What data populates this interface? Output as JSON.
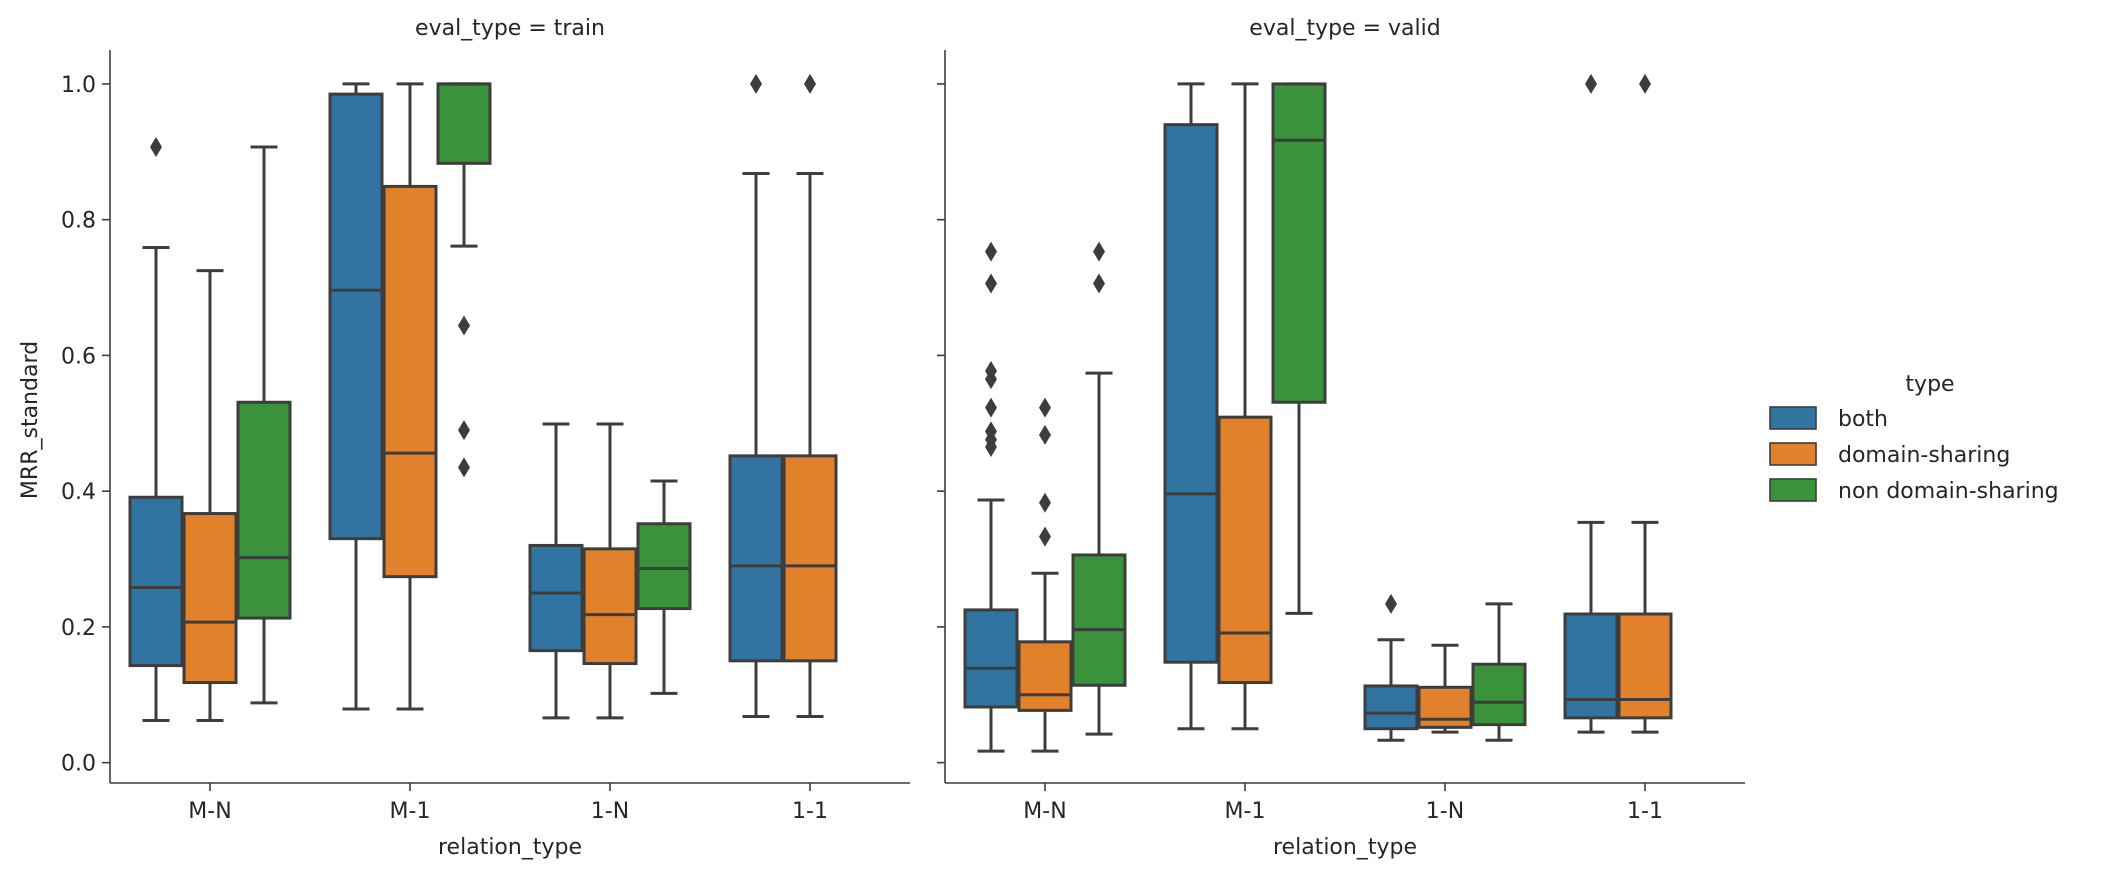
{
  "chart_data": {
    "type": "box",
    "y_label": "MRR_standard",
    "x_label": "relation_type",
    "ylim": [
      -0.03,
      1.05
    ],
    "y_ticks": [
      "0.0",
      "0.2",
      "0.4",
      "0.6",
      "0.8",
      "1.0"
    ],
    "categories": [
      "M-N",
      "M-1",
      "1-N",
      "1-1"
    ],
    "legend": {
      "title": "type",
      "position": "right",
      "entries": [
        {
          "name": "both",
          "color": "#3274a1"
        },
        {
          "name": "domain-sharing",
          "color": "#e1812c"
        },
        {
          "name": "non domain-sharing",
          "color": "#3a923a"
        }
      ]
    },
    "facets": [
      {
        "title": "eval_type = train",
        "groups": [
          {
            "category": "M-N",
            "boxes": [
              {
                "series": "both",
                "whislo": 0.062,
                "q1": 0.143,
                "med": 0.258,
                "q3": 0.391,
                "whishi": 0.759,
                "fliers": [
                  0.907
                ]
              },
              {
                "series": "domain-sharing",
                "whislo": 0.062,
                "q1": 0.118,
                "med": 0.207,
                "q3": 0.367,
                "whishi": 0.725,
                "fliers": []
              },
              {
                "series": "non domain-sharing",
                "whislo": 0.088,
                "q1": 0.213,
                "med": 0.302,
                "q3": 0.531,
                "whishi": 0.907,
                "fliers": []
              }
            ]
          },
          {
            "category": "M-1",
            "boxes": [
              {
                "series": "both",
                "whislo": 0.079,
                "q1": 0.33,
                "med": 0.696,
                "q3": 0.985,
                "whishi": 1.0,
                "fliers": []
              },
              {
                "series": "domain-sharing",
                "whislo": 0.079,
                "q1": 0.274,
                "med": 0.456,
                "q3": 0.849,
                "whishi": 1.0,
                "fliers": []
              },
              {
                "series": "non domain-sharing",
                "whislo": 0.761,
                "q1": 0.883,
                "med": 1.0,
                "q3": 1.0,
                "whishi": 1.0,
                "fliers": [
                  0.644,
                  0.49,
                  0.435
                ]
              }
            ]
          },
          {
            "category": "1-N",
            "boxes": [
              {
                "series": "both",
                "whislo": 0.066,
                "q1": 0.165,
                "med": 0.25,
                "q3": 0.32,
                "whishi": 0.499,
                "fliers": []
              },
              {
                "series": "domain-sharing",
                "whislo": 0.066,
                "q1": 0.146,
                "med": 0.218,
                "q3": 0.315,
                "whishi": 0.499,
                "fliers": []
              },
              {
                "series": "non domain-sharing",
                "whislo": 0.102,
                "q1": 0.227,
                "med": 0.286,
                "q3": 0.352,
                "whishi": 0.415,
                "fliers": []
              }
            ]
          },
          {
            "category": "1-1",
            "boxes": [
              {
                "series": "both",
                "whislo": 0.068,
                "q1": 0.15,
                "med": 0.29,
                "q3": 0.452,
                "whishi": 0.868,
                "fliers": [
                  1.0
                ]
              },
              {
                "series": "domain-sharing",
                "whislo": 0.068,
                "q1": 0.15,
                "med": 0.29,
                "q3": 0.452,
                "whishi": 0.868,
                "fliers": [
                  1.0
                ]
              }
            ]
          }
        ]
      },
      {
        "title": "eval_type = valid",
        "groups": [
          {
            "category": "M-N",
            "boxes": [
              {
                "series": "both",
                "whislo": 0.017,
                "q1": 0.082,
                "med": 0.139,
                "q3": 0.225,
                "whishi": 0.387,
                "fliers": [
                  0.753,
                  0.706,
                  0.577,
                  0.565,
                  0.523,
                  0.488,
                  0.476,
                  0.465
                ]
              },
              {
                "series": "domain-sharing",
                "whislo": 0.017,
                "q1": 0.077,
                "med": 0.1,
                "q3": 0.178,
                "whishi": 0.279,
                "fliers": [
                  0.523,
                  0.483,
                  0.383,
                  0.333
                ]
              },
              {
                "series": "non domain-sharing",
                "whislo": 0.042,
                "q1": 0.114,
                "med": 0.196,
                "q3": 0.306,
                "whishi": 0.574,
                "fliers": [
                  0.753,
                  0.706
                ]
              }
            ]
          },
          {
            "category": "M-1",
            "boxes": [
              {
                "series": "both",
                "whislo": 0.05,
                "q1": 0.148,
                "med": 0.396,
                "q3": 0.94,
                "whishi": 1.0,
                "fliers": []
              },
              {
                "series": "domain-sharing",
                "whislo": 0.05,
                "q1": 0.118,
                "med": 0.191,
                "q3": 0.509,
                "whishi": 1.0,
                "fliers": []
              },
              {
                "series": "non domain-sharing",
                "whislo": 0.22,
                "q1": 0.531,
                "med": 0.917,
                "q3": 1.0,
                "whishi": 1.0,
                "fliers": []
              }
            ]
          },
          {
            "category": "1-N",
            "boxes": [
              {
                "series": "both",
                "whislo": 0.033,
                "q1": 0.05,
                "med": 0.073,
                "q3": 0.113,
                "whishi": 0.181,
                "fliers": [
                  0.234
                ]
              },
              {
                "series": "domain-sharing",
                "whislo": 0.045,
                "q1": 0.052,
                "med": 0.064,
                "q3": 0.111,
                "whishi": 0.173,
                "fliers": []
              },
              {
                "series": "non domain-sharing",
                "whislo": 0.033,
                "q1": 0.056,
                "med": 0.089,
                "q3": 0.145,
                "whishi": 0.234,
                "fliers": []
              }
            ]
          },
          {
            "category": "1-1",
            "boxes": [
              {
                "series": "both",
                "whislo": 0.045,
                "q1": 0.066,
                "med": 0.093,
                "q3": 0.219,
                "whishi": 0.354,
                "fliers": [
                  1.0
                ]
              },
              {
                "series": "domain-sharing",
                "whislo": 0.045,
                "q1": 0.066,
                "med": 0.093,
                "q3": 0.219,
                "whishi": 0.354,
                "fliers": [
                  1.0
                ]
              }
            ]
          }
        ]
      }
    ]
  }
}
